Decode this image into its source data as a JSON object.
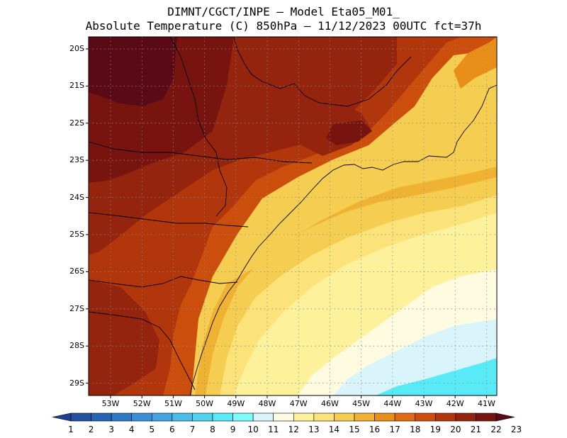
{
  "title": {
    "line1": "DIMNT/CGCT/INPE –  Model Eta05_M01_",
    "line2": "Absolute Temperature (C) 850hPa –  11/12/2023 00UTC fct=37h"
  },
  "lat_labels": [
    "20S",
    "21S",
    "22S",
    "23S",
    "24S",
    "25S",
    "26S",
    "27S",
    "28S",
    "29S"
  ],
  "lon_labels": [
    "53W",
    "52W",
    "51W",
    "50W",
    "49W",
    "48W",
    "47W",
    "46W",
    "45W",
    "44W",
    "43W",
    "42W",
    "41W"
  ],
  "colorbar": {
    "labels": [
      "1",
      "2",
      "3",
      "4",
      "5",
      "6",
      "7",
      "8",
      "9",
      "10",
      "11",
      "12",
      "13",
      "14",
      "15",
      "16",
      "17",
      "18",
      "19",
      "20",
      "21",
      "22",
      "23"
    ],
    "colors": [
      "#1f3f8f",
      "#22509f",
      "#2a62b3",
      "#2f78c6",
      "#3a8ed8",
      "#42a5e2",
      "#48bde8",
      "#4fd3ee",
      "#59eaf8",
      "#7efcfc",
      "#d9f5fb",
      "#fffbe0",
      "#fef19b",
      "#fbe37a",
      "#f5cd50",
      "#f0b233",
      "#ea8e1a",
      "#e06a10",
      "#cc4e0d",
      "#b1360c",
      "#94240d",
      "#77140f",
      "#5a0a14"
    ]
  },
  "colors": {
    "c11": "#d9f5fb",
    "c12": "#fffbe0",
    "c13": "#fef19b",
    "c14": "#fbe37a",
    "c15": "#f5cd50",
    "c16": "#f0b233",
    "c17": "#ea8e1a",
    "c18": "#e06a10",
    "c19": "#cc4e0d",
    "c20": "#b1360c",
    "c21": "#94240d",
    "c22": "#77140f",
    "c23": "#5a0a14",
    "cyan": "#59eaf8"
  }
}
